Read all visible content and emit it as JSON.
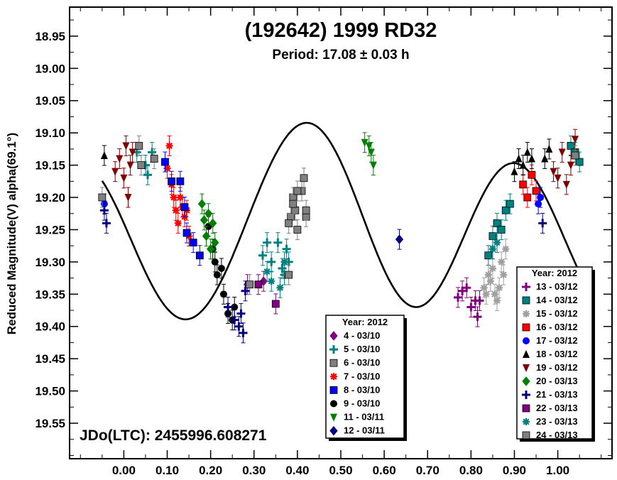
{
  "chart_data": {
    "type": "scatter",
    "title": "(192642) 1999 RD32",
    "subtitle": "Period: 17.08 ± 0.03 h",
    "ylabel": "Reduced Magnitude(V) alpha(69.1°)",
    "xlabel": "",
    "annotation": "JDo(LTC): 2455996.608271",
    "xlim": [
      -0.125,
      1.125
    ],
    "ylim": [
      19.605,
      18.905
    ],
    "y_inverted": true,
    "x_ticks": [
      "0.00",
      "0.10",
      "0.20",
      "0.30",
      "0.40",
      "0.50",
      "0.60",
      "0.70",
      "0.80",
      "0.90",
      "1.00"
    ],
    "y_ticks": [
      "18.95",
      "19.00",
      "19.05",
      "19.10",
      "19.15",
      "19.20",
      "19.25",
      "19.30",
      "19.35",
      "19.40",
      "19.45",
      "19.50",
      "19.55"
    ],
    "fit_curve": {
      "mean": 19.247,
      "terms": [
        {
          "harmonic": 1,
          "a": 0.0395,
          "b": -0.0055
        },
        {
          "harmonic": 2,
          "a": -0.0545,
          "b": 0.118
        },
        {
          "harmonic": 3,
          "a": 0.008,
          "b": 0.004
        }
      ]
    },
    "legend_left": {
      "title": "Year: 2012",
      "placement": "bottom-center",
      "entries": [
        "4 - 03/10",
        "5 - 03/10",
        "6 - 03/10",
        "7 - 03/10",
        "8 - 03/10",
        "9 - 03/10",
        "11 - 03/11",
        "12 - 03/11"
      ]
    },
    "legend_right": {
      "title": "Year: 2012",
      "placement": "bottom-right",
      "entries": [
        "13 - 03/12",
        "14 - 03/12",
        "15 - 03/12",
        "16 - 03/12",
        "17 - 03/12",
        "18 - 03/12",
        "19 - 03/12",
        "20 - 03/13",
        "21 - 03/13",
        "22 - 03/13",
        "23 - 03/13",
        "24 - 03/13"
      ]
    },
    "series": [
      {
        "name": "4 - 03/10",
        "marker": "diamond",
        "color": "#800080",
        "points": [
          [
            0.285,
            19.335
          ],
          [
            0.322,
            19.33
          ]
        ]
      },
      {
        "name": "5 - 03/10",
        "marker": "plus-bold",
        "color": "#008080",
        "points": [
          [
            0.03,
            19.13
          ],
          [
            0.05,
            19.15
          ],
          [
            0.055,
            19.165
          ],
          [
            0.065,
            19.13
          ],
          [
            0.32,
            19.29
          ],
          [
            0.33,
            19.27
          ],
          [
            0.34,
            19.3
          ],
          [
            0.355,
            19.27
          ],
          [
            0.365,
            19.31
          ],
          [
            0.37,
            19.32
          ],
          [
            0.375,
            19.28
          ],
          [
            0.38,
            19.3
          ]
        ]
      },
      {
        "name": "6 - 03/10",
        "marker": "square-open",
        "color": "#808080",
        "points": [
          [
            0.035,
            19.12
          ],
          [
            0.29,
            19.335
          ],
          [
            0.38,
            19.32
          ],
          [
            0.385,
            19.23
          ],
          [
            0.39,
            19.2
          ],
          [
            0.395,
            19.22
          ],
          [
            0.4,
            19.25
          ],
          [
            0.41,
            19.19
          ],
          [
            0.415,
            19.17
          ],
          [
            0.42,
            19.23
          ]
        ]
      },
      {
        "name": "7 - 03/10",
        "marker": "asterisk",
        "color": "#ff0000",
        "points": [
          [
            0.1,
            19.155
          ],
          [
            0.105,
            19.12
          ],
          [
            0.11,
            19.18
          ],
          [
            0.115,
            19.2
          ],
          [
            0.12,
            19.22
          ],
          [
            0.125,
            19.24
          ],
          [
            0.13,
            19.2
          ],
          [
            0.135,
            19.215
          ],
          [
            0.14,
            19.23
          ],
          [
            0.145,
            19.22
          ],
          [
            0.15,
            19.26
          ]
        ]
      },
      {
        "name": "8 - 03/10",
        "marker": "square",
        "color": "#0000ff",
        "points": [
          [
            0.095,
            19.145
          ],
          [
            0.11,
            19.175
          ],
          [
            0.13,
            19.175
          ],
          [
            0.14,
            19.215
          ],
          [
            0.145,
            19.255
          ],
          [
            0.16,
            19.27
          ],
          [
            0.175,
            19.29
          ]
        ]
      },
      {
        "name": "9 - 03/10",
        "marker": "circle",
        "color": "#000000",
        "points": [
          [
            0.195,
            19.245
          ],
          [
            0.205,
            19.28
          ],
          [
            0.21,
            19.3
          ],
          [
            0.215,
            19.32
          ],
          [
            0.225,
            19.31
          ],
          [
            0.23,
            19.35
          ],
          [
            0.24,
            19.38
          ],
          [
            0.25,
            19.39
          ],
          [
            0.255,
            19.37
          ]
        ]
      },
      {
        "name": "11 - 03/11",
        "marker": "tri-down",
        "color": "#008000",
        "points": [
          [
            0.555,
            19.115
          ],
          [
            0.565,
            19.12
          ],
          [
            0.57,
            19.13
          ],
          [
            0.575,
            19.15
          ]
        ]
      },
      {
        "name": "12 - 03/11",
        "marker": "diamond",
        "color": "#000080",
        "points": [
          [
            0.635,
            19.265
          ]
        ]
      },
      {
        "name": "13 - 03/12",
        "marker": "plus-bold",
        "color": "#800080",
        "points": [
          [
            0.77,
            19.355
          ],
          [
            0.78,
            19.345
          ],
          [
            0.79,
            19.34
          ],
          [
            0.8,
            19.37
          ],
          [
            0.81,
            19.36
          ],
          [
            0.815,
            19.385
          ],
          [
            0.82,
            19.36
          ]
        ]
      },
      {
        "name": "14 - 03/12",
        "marker": "square",
        "color": "#008080",
        "points": [
          [
            0.84,
            19.29
          ],
          [
            0.85,
            19.26
          ],
          [
            0.86,
            19.24
          ],
          [
            0.87,
            19.25
          ],
          [
            0.88,
            19.22
          ],
          [
            0.89,
            19.21
          ],
          [
            1.03,
            19.12
          ],
          [
            1.04,
            19.13
          ],
          [
            1.05,
            19.145
          ]
        ]
      },
      {
        "name": "15 - 03/12",
        "marker": "asterisk",
        "color": "#a0a0a0",
        "points": [
          [
            0.83,
            19.34
          ],
          [
            0.835,
            19.35
          ],
          [
            0.84,
            19.32
          ],
          [
            0.845,
            19.33
          ],
          [
            0.85,
            19.31
          ],
          [
            0.855,
            19.35
          ],
          [
            0.86,
            19.36
          ],
          [
            0.865,
            19.34
          ],
          [
            0.87,
            19.3
          ],
          [
            0.875,
            19.32
          ],
          [
            0.88,
            19.28
          ]
        ]
      },
      {
        "name": "16 - 03/12",
        "marker": "square",
        "color": "#ff0000",
        "points": [
          [
            0.92,
            19.18
          ],
          [
            0.93,
            19.2
          ],
          [
            0.94,
            19.165
          ],
          [
            0.95,
            19.19
          ]
        ]
      },
      {
        "name": "17 - 03/12",
        "marker": "circle",
        "color": "#0000ff",
        "points": [
          [
            0.955,
            19.21
          ],
          [
            0.96,
            19.2
          ],
          [
            -0.045,
            19.21
          ]
        ]
      },
      {
        "name": "18 - 03/12",
        "marker": "tri-up",
        "color": "#000000",
        "points": [
          [
            0.9,
            19.16
          ],
          [
            0.91,
            19.14
          ],
          [
            0.92,
            19.15
          ],
          [
            0.93,
            19.13
          ],
          [
            0.94,
            19.14
          ],
          [
            0.97,
            19.14
          ],
          [
            0.98,
            19.125
          ],
          [
            -0.045,
            19.135
          ]
        ]
      },
      {
        "name": "19 - 03/12",
        "marker": "tri-down",
        "color": "#800000",
        "points": [
          [
            0.99,
            19.16
          ],
          [
            1.0,
            19.17
          ],
          [
            1.01,
            19.13
          ],
          [
            1.02,
            19.18
          ],
          [
            1.03,
            19.15
          ],
          [
            1.04,
            19.11
          ],
          [
            -0.02,
            19.16
          ],
          [
            -0.01,
            19.14
          ],
          [
            0.0,
            19.17
          ],
          [
            0.005,
            19.12
          ],
          [
            0.01,
            19.2
          ],
          [
            0.015,
            19.15
          ],
          [
            0.02,
            19.13
          ]
        ]
      },
      {
        "name": "20 - 03/13",
        "marker": "diamond",
        "color": "#008000",
        "points": [
          [
            0.18,
            19.21
          ],
          [
            0.185,
            19.235
          ],
          [
            0.19,
            19.26
          ],
          [
            0.195,
            19.225
          ],
          [
            0.2,
            19.28
          ],
          [
            0.205,
            19.24
          ],
          [
            0.21,
            19.27
          ]
        ]
      },
      {
        "name": "21 - 03/13",
        "marker": "plus-bold",
        "color": "#000080",
        "points": [
          [
            -0.045,
            19.22
          ],
          [
            -0.04,
            19.24
          ],
          [
            0.24,
            19.37
          ],
          [
            0.255,
            19.39
          ],
          [
            0.265,
            19.4
          ],
          [
            0.27,
            19.38
          ],
          [
            0.275,
            19.41
          ],
          [
            0.28,
            19.345
          ],
          [
            0.965,
            19.24
          ]
        ]
      },
      {
        "name": "22 - 03/13",
        "marker": "square",
        "color": "#800080",
        "points": [
          [
            0.31,
            19.335
          ],
          [
            0.35,
            19.365
          ]
        ]
      },
      {
        "name": "23 - 03/13",
        "marker": "asterisk",
        "color": "#008080",
        "points": [
          [
            0.33,
            19.315
          ],
          [
            0.34,
            19.33
          ],
          [
            0.36,
            19.34
          ],
          [
            0.37,
            19.3
          ],
          [
            0.85,
            19.28
          ],
          [
            0.86,
            19.27
          ]
        ]
      },
      {
        "name": "24 - 03/13",
        "marker": "square",
        "color": "#808080",
        "points": [
          [
            -0.05,
            19.2
          ],
          [
            0.04,
            19.15
          ],
          [
            0.07,
            19.14
          ],
          [
            0.38,
            19.24
          ],
          [
            0.39,
            19.21
          ],
          [
            0.4,
            19.19
          ],
          [
            0.42,
            19.22
          ],
          [
            1.04,
            19.135
          ]
        ]
      }
    ]
  }
}
